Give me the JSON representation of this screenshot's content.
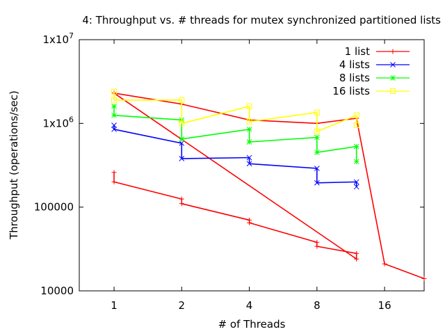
{
  "chart_data": {
    "type": "line",
    "title": "4: Throughput vs. # threads for mutex synchronized partitioned lists",
    "xlabel": "# of Threads",
    "ylabel": "Throughput (operations/sec)",
    "x_scale": "log2",
    "y_scale": "log10",
    "xlim": [
      0.7,
      24
    ],
    "ylim": [
      10000,
      10000000
    ],
    "x_ticks": [
      {
        "value": 1,
        "label": "1"
      },
      {
        "value": 2,
        "label": "2"
      },
      {
        "value": 4,
        "label": "4"
      },
      {
        "value": 8,
        "label": "8"
      },
      {
        "value": 16,
        "label": "16"
      }
    ],
    "y_ticks": [
      {
        "value": 10000,
        "label": "10000"
      },
      {
        "value": 100000,
        "label": "100000"
      },
      {
        "value": 1000000,
        "label": "1x10",
        "exp": "6"
      },
      {
        "value": 10000000,
        "label": "1x10",
        "exp": "7"
      }
    ],
    "grid": false,
    "legend_position": "top-right",
    "series": [
      {
        "name": "1 list",
        "color": "#ff0000",
        "marker": "plus",
        "x": [
          1,
          1,
          2,
          2,
          4,
          4,
          8,
          8,
          12,
          12,
          1,
          2,
          4,
          8,
          12,
          16,
          24
        ],
        "y": [
          260000,
          200000,
          125000,
          110000,
          70000,
          65000,
          38000,
          34000,
          28000,
          24000,
          2300000,
          1700000,
          1100000,
          1000000,
          1150000,
          21000,
          14000
        ]
      },
      {
        "name": "4 lists",
        "color": "#0000ff",
        "marker": "x",
        "x": [
          1,
          1,
          2,
          2,
          4,
          4,
          8,
          8,
          12,
          12
        ],
        "y": [
          950000,
          850000,
          580000,
          380000,
          390000,
          330000,
          290000,
          195000,
          200000,
          175000
        ]
      },
      {
        "name": "8 lists",
        "color": "#00ff00",
        "marker": "star",
        "x": [
          1,
          1,
          2,
          2,
          4,
          4,
          8,
          8,
          12,
          12
        ],
        "y": [
          1600000,
          1250000,
          1100000,
          650000,
          850000,
          600000,
          680000,
          450000,
          530000,
          350000
        ]
      },
      {
        "name": "16 lists",
        "color": "#ffff00",
        "marker": "square",
        "x": [
          1,
          1,
          2,
          2,
          4,
          4,
          8,
          8,
          12,
          12
        ],
        "y": [
          2400000,
          1900000,
          1900000,
          1000000,
          1600000,
          1050000,
          1350000,
          800000,
          1250000,
          950000
        ]
      }
    ]
  }
}
